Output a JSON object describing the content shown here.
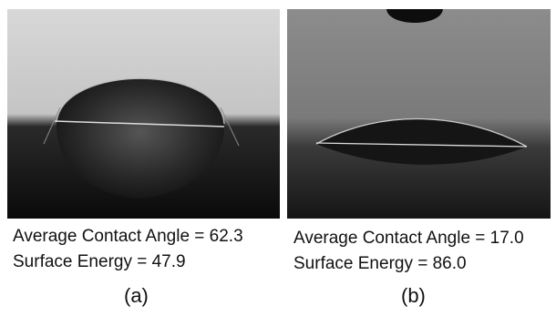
{
  "panels": [
    {
      "contact_angle": "Average Contact Angle = 62.3",
      "surface_energy": "Surface Energy = 47.9",
      "label": "(a)"
    },
    {
      "contact_angle": "Average Contact Angle = 17.0",
      "surface_energy": "Surface Energy = 86.0",
      "label": "(b)"
    }
  ]
}
